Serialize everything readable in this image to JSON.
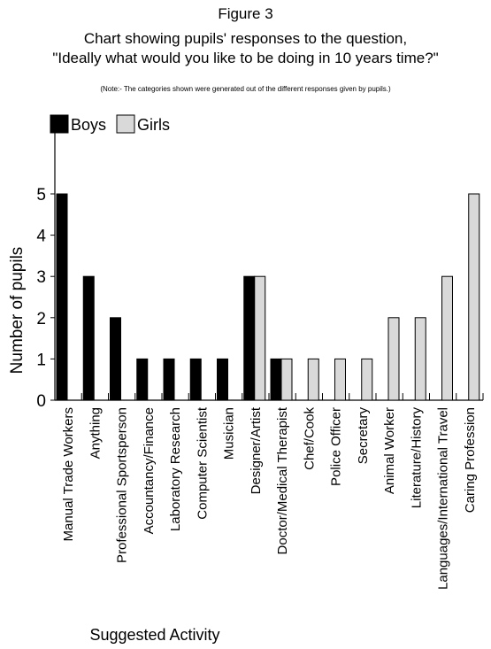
{
  "figure_label": "Figure 3",
  "chart_data": {
    "type": "bar",
    "title": "Chart showing pupils' responses to the question,",
    "subtitle": "\"Ideally what would you like to be doing in 10 years time?\"",
    "note": "(Note:- The categories shown were generated out of the different responses given by pupils.)",
    "xlabel": "Suggested Activity",
    "ylabel": "Number of pupils",
    "ylim": [
      0,
      5
    ],
    "y_ticks": [
      0,
      1,
      2,
      3,
      4,
      5
    ],
    "grid": false,
    "legend_position": "top-left",
    "categories": [
      "Manual Trade Workers",
      "Anything",
      "Professional Sportsperson",
      "Accountancy/Finance",
      "Laboratory Research",
      "Computer Scientist",
      "Musician",
      "Designer/Artist",
      "Doctor/Medical Therapist",
      "Chef/Cook",
      "Police Officer",
      "Secretary",
      "Animal Worker",
      "Literature/History",
      "Languages/International Travel",
      "Caring Profession"
    ],
    "series": [
      {
        "name": "Boys",
        "color": "#000000",
        "values": [
          5,
          3,
          2,
          1,
          1,
          1,
          1,
          3,
          1,
          0,
          0,
          0,
          0,
          0,
          0,
          0
        ]
      },
      {
        "name": "Girls",
        "color": "#d9d9d9",
        "values": [
          0,
          0,
          0,
          0,
          0,
          0,
          0,
          3,
          1,
          1,
          1,
          1,
          2,
          2,
          3,
          5
        ]
      }
    ]
  }
}
